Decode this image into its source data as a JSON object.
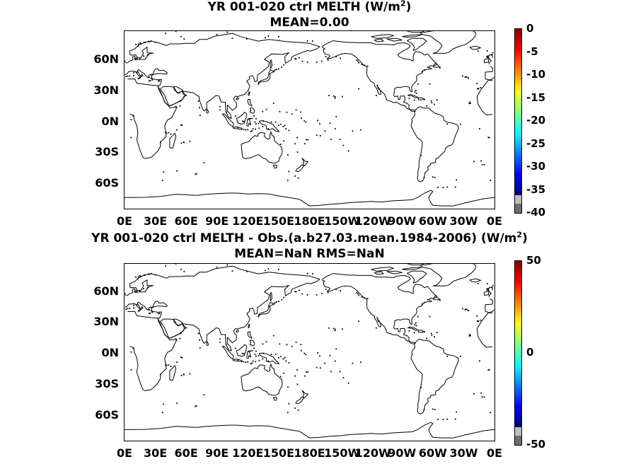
{
  "panels": [
    {
      "id": "top",
      "title_main": "YR 001-020 ctrl  MELTH (W/m",
      "title_sup": "2",
      "title_end": ")",
      "subtitle": "MEAN=0.00",
      "y_labels": [
        "60N",
        "30N",
        "0N",
        "30S",
        "60S"
      ],
      "x_labels": [
        "0E",
        "30E",
        "60E",
        "90E",
        "120E",
        "150E",
        "180E",
        "150W",
        "120W",
        "90W",
        "60W",
        "30W",
        "0E"
      ],
      "colorbar_labels": [
        "0",
        "-5",
        "-10",
        "-15",
        "-20",
        "-25",
        "-30",
        "-35",
        "-40"
      ]
    },
    {
      "id": "bottom",
      "title_main": "YR 001-020 ctrl MELTH - Obs.(a.b27.03.mean.1984-2006) (W/m",
      "title_sup": "2",
      "title_end": ")",
      "subtitle": "MEAN=NaN RMS=NaN",
      "y_labels": [
        "60N",
        "30N",
        "0N",
        "30S",
        "60S"
      ],
      "x_labels": [
        "0E",
        "30E",
        "60E",
        "90E",
        "120E",
        "150E",
        "180E",
        "150W",
        "120W",
        "90W",
        "60W",
        "30W",
        "0E"
      ],
      "colorbar_labels": [
        "50",
        "0",
        "-50"
      ]
    }
  ],
  "chart_data": {
    "type": "heatmap",
    "map_projection": "cylindrical",
    "lon_range": [
      0,
      360
    ],
    "lat_range": [
      -80,
      80
    ],
    "colormap": [
      "#7f0000",
      "#ff0000",
      "#ff8000",
      "#ffff00",
      "#80ff80",
      "#00ffff",
      "#0080ff",
      "#0000ff",
      "#00007f"
    ],
    "colorbars": [
      {
        "range": [
          -40,
          0
        ],
        "ticks": [
          0,
          -5,
          -10,
          -15,
          -20,
          -25,
          -30,
          -35,
          -40
        ]
      },
      {
        "range": [
          -50,
          50
        ],
        "ticks": [
          50,
          0,
          -50
        ]
      }
    ]
  }
}
